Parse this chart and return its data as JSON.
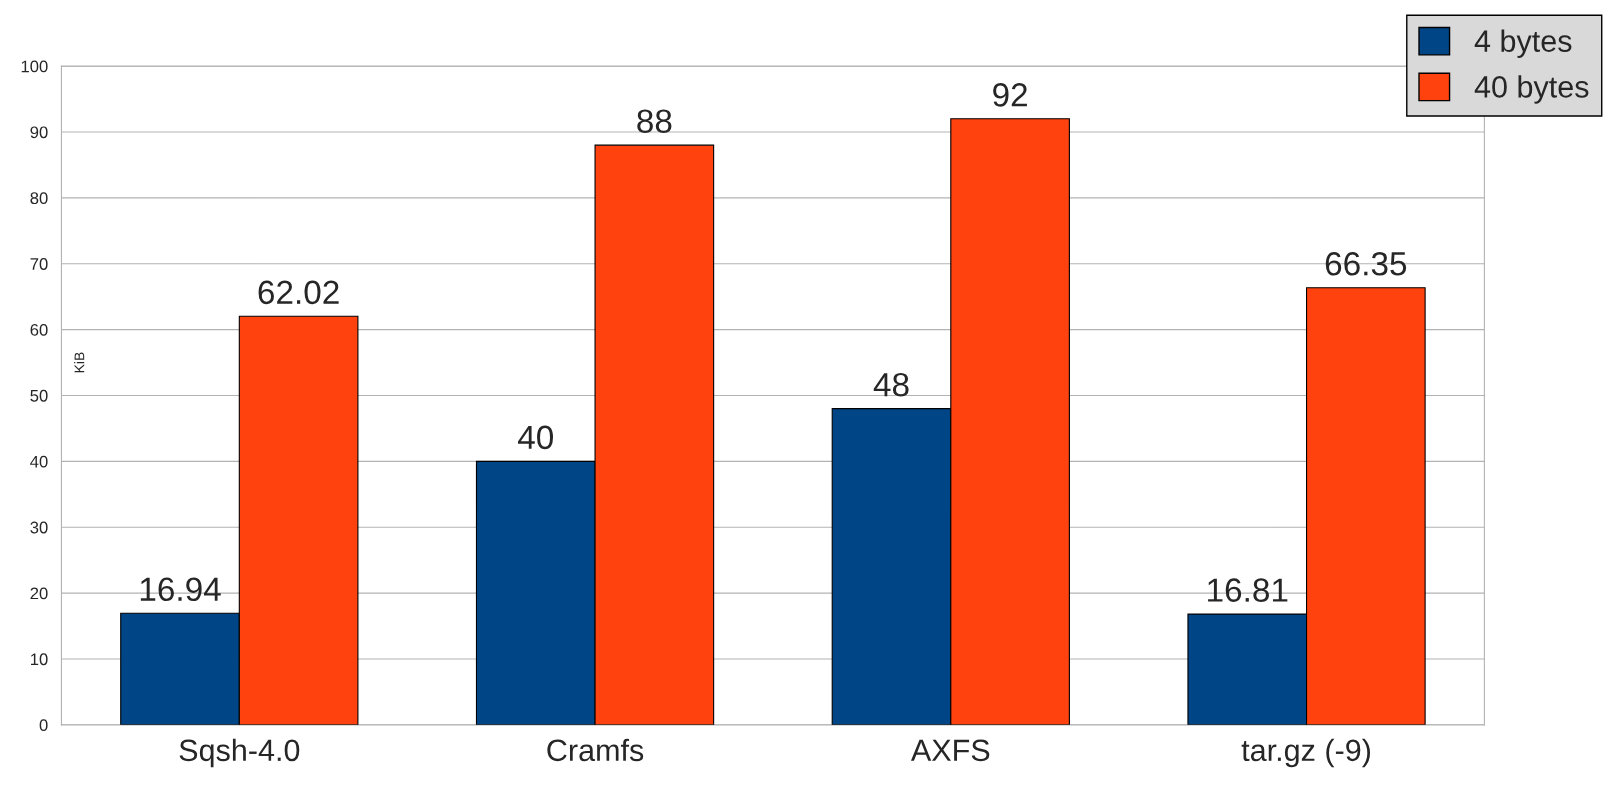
{
  "chart_data": {
    "type": "bar",
    "ylabel": "KiB",
    "categories": [
      "Sqsh-4.0",
      "Cramfs",
      "AXFS",
      "tar.gz (-9)"
    ],
    "series": [
      {
        "name": "4 bytes",
        "color": "#004586",
        "values": [
          16.94,
          40,
          48,
          16.81
        ]
      },
      {
        "name": "40 bytes",
        "color": "#ff420e",
        "values": [
          62.02,
          88,
          92,
          66.35
        ]
      }
    ],
    "ylim": [
      0,
      100
    ],
    "yticks": [
      0,
      10,
      20,
      30,
      40,
      50,
      60,
      70,
      80,
      90,
      100
    ],
    "grid": "y",
    "legend": "top right",
    "data_labels": true
  }
}
